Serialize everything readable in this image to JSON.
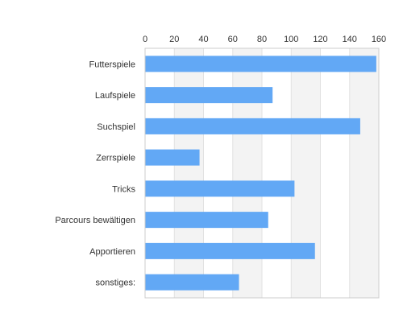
{
  "chart_data": {
    "type": "bar",
    "orientation": "horizontal",
    "categories": [
      "Futterspiele",
      "Laufspiele",
      "Suchspiel",
      "Zerrspiele",
      "Tricks",
      "Parcours bewältigen",
      "Apportieren",
      "sonstiges:"
    ],
    "values": [
      158,
      87,
      147,
      37,
      102,
      84,
      116,
      64
    ],
    "xlim": [
      0,
      160
    ],
    "ticks": [
      0,
      20,
      40,
      60,
      80,
      100,
      120,
      140,
      160
    ],
    "tick_labels": [
      "0",
      "20",
      "40",
      "60",
      "80",
      "100",
      "120",
      "140",
      "160"
    ],
    "x_axis_position": "top",
    "grid": true,
    "alternating_bands": true,
    "legend": "none",
    "colors": {
      "bar": "#62a8f5",
      "band": "#f3f3f3",
      "grid": "#e2e2e2",
      "axis": "#cccccc",
      "text": "#333333"
    }
  }
}
